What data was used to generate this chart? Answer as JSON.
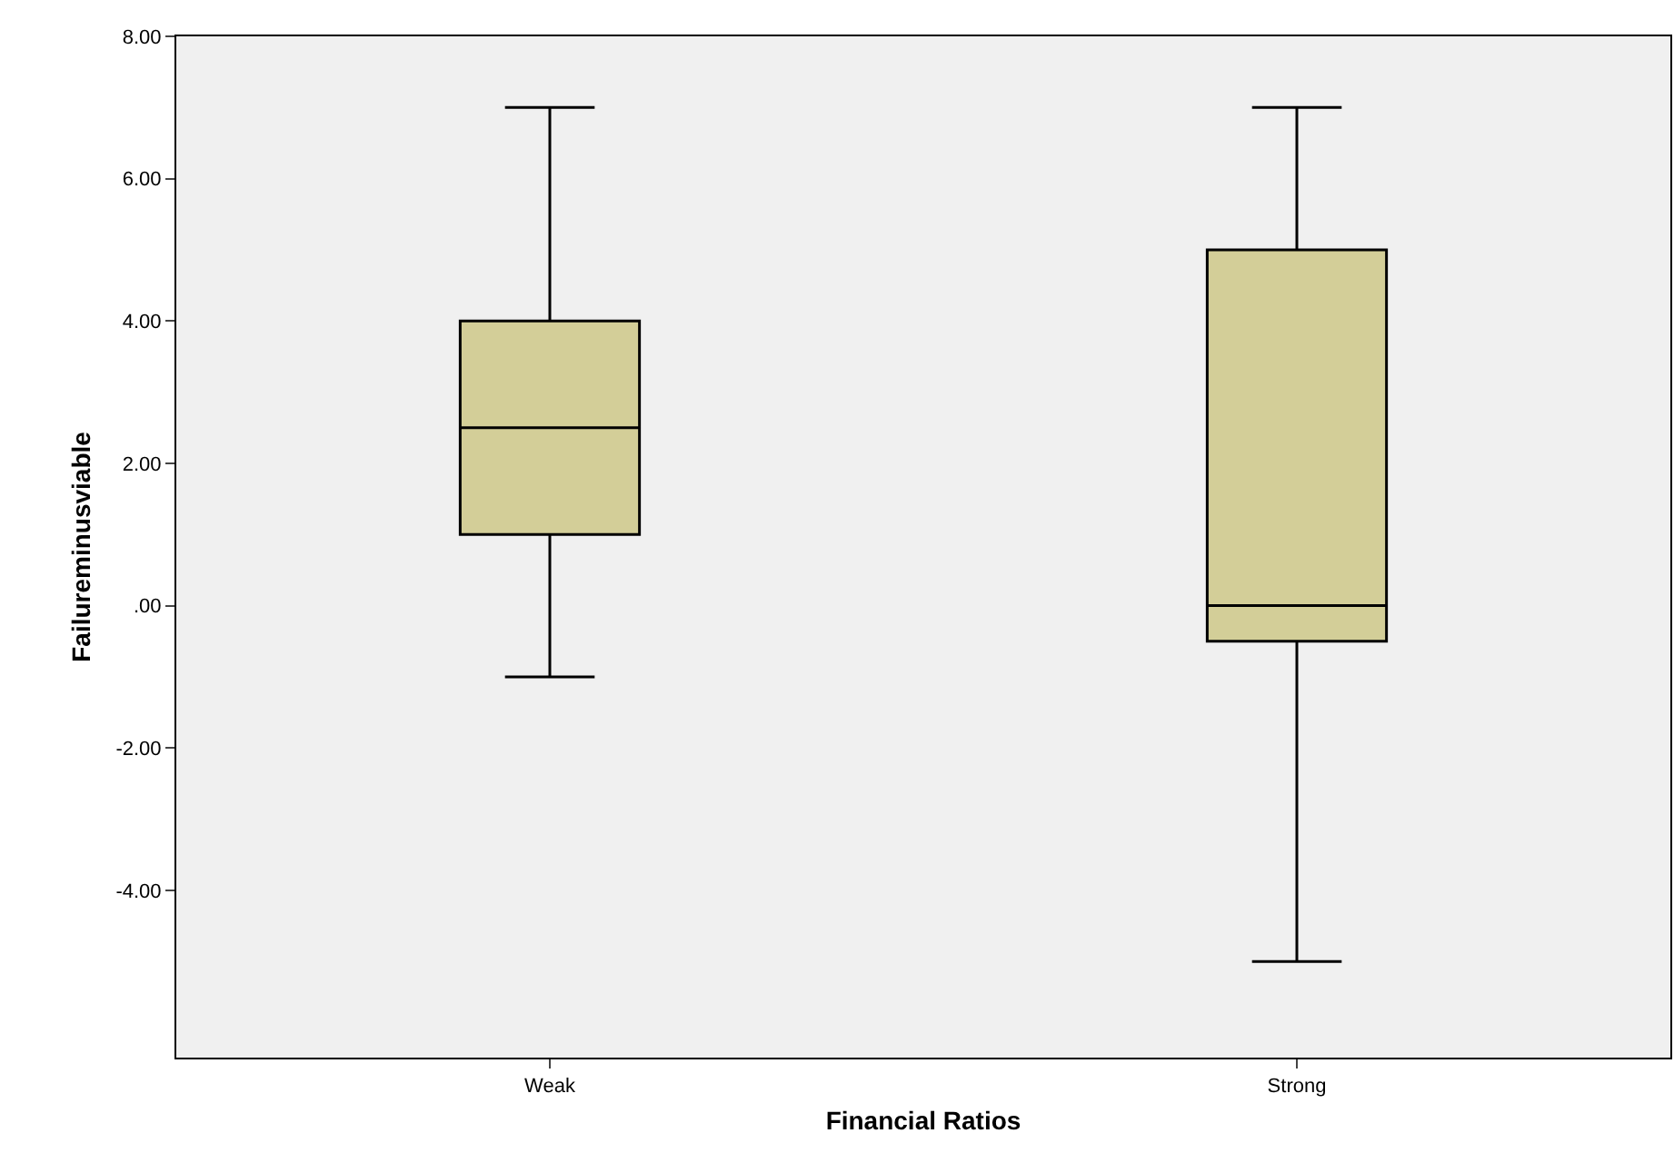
{
  "chart_data": {
    "type": "box",
    "xlabel": "Financial Ratios",
    "ylabel": "Failureminusviable",
    "categories": [
      "Weak",
      "Strong"
    ],
    "boxes": [
      {
        "low": -1,
        "q1": 1,
        "median": 2.5,
        "q3": 4,
        "high": 7
      },
      {
        "low": -5,
        "q1": -0.5,
        "median": 0,
        "q3": 5,
        "high": 7
      }
    ],
    "color": "#d3ce98",
    "ylim": [
      -6.35,
      8
    ],
    "yticks": [
      {
        "value": -4,
        "label": "-4.00"
      },
      {
        "value": -2,
        "label": "-2.00"
      },
      {
        "value": 0,
        "label": ".00"
      },
      {
        "value": 2,
        "label": "2.00"
      },
      {
        "value": 4,
        "label": "4.00"
      },
      {
        "value": 6,
        "label": "6.00"
      },
      {
        "value": 8,
        "label": "8.00"
      }
    ],
    "grid": false
  }
}
